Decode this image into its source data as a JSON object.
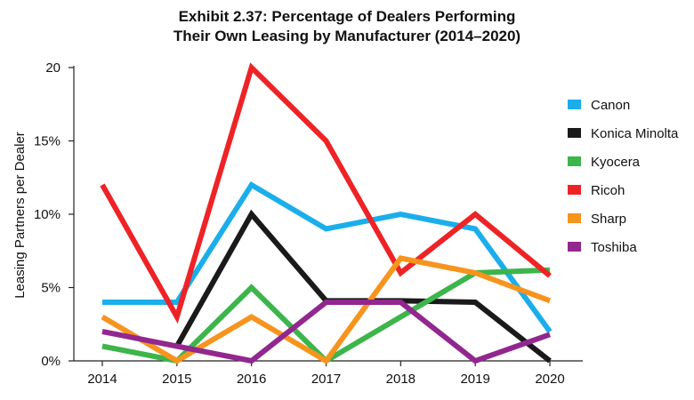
{
  "chart_data": {
    "type": "line",
    "title_line1": "Exhibit 2.37: Percentage of Dealers Performing",
    "title_line2": "Their Own Leasing by Manufacturer (2014–2020)",
    "ylabel": "Leasing Partners per Dealer",
    "xlabel": "",
    "x": [
      "2014",
      "2015",
      "2016",
      "2017",
      "2018",
      "2019",
      "2020"
    ],
    "ylim": [
      0,
      20
    ],
    "yticks": [
      {
        "value": 0,
        "label": "0%"
      },
      {
        "value": 5,
        "label": "5%"
      },
      {
        "value": 10,
        "label": "10%"
      },
      {
        "value": 15,
        "label": "15%"
      },
      {
        "value": 20,
        "label": "20"
      }
    ],
    "grid": false,
    "legend_position": "right",
    "series": [
      {
        "name": "Canon",
        "color": "#1aaeeb",
        "values": [
          4,
          4,
          12,
          9,
          10,
          9,
          2
        ]
      },
      {
        "name": "Konica Minolta",
        "color": "#1a1a1a",
        "values": [
          null,
          1,
          10,
          4.1,
          4.1,
          4,
          0
        ]
      },
      {
        "name": "Kyocera",
        "color": "#3cb54a",
        "values": [
          1,
          0,
          5,
          0,
          3,
          6,
          6.2
        ]
      },
      {
        "name": "Ricoh",
        "color": "#ee2326",
        "values": [
          12,
          3,
          20,
          15,
          6,
          10,
          5.8
        ]
      },
      {
        "name": "Sharp",
        "color": "#f7941d",
        "values": [
          3,
          0,
          3,
          0,
          7,
          6,
          4.1
        ]
      },
      {
        "name": "Toshiba",
        "color": "#92278f",
        "values": [
          2,
          1,
          0,
          4,
          4,
          0,
          1.8
        ]
      }
    ]
  }
}
